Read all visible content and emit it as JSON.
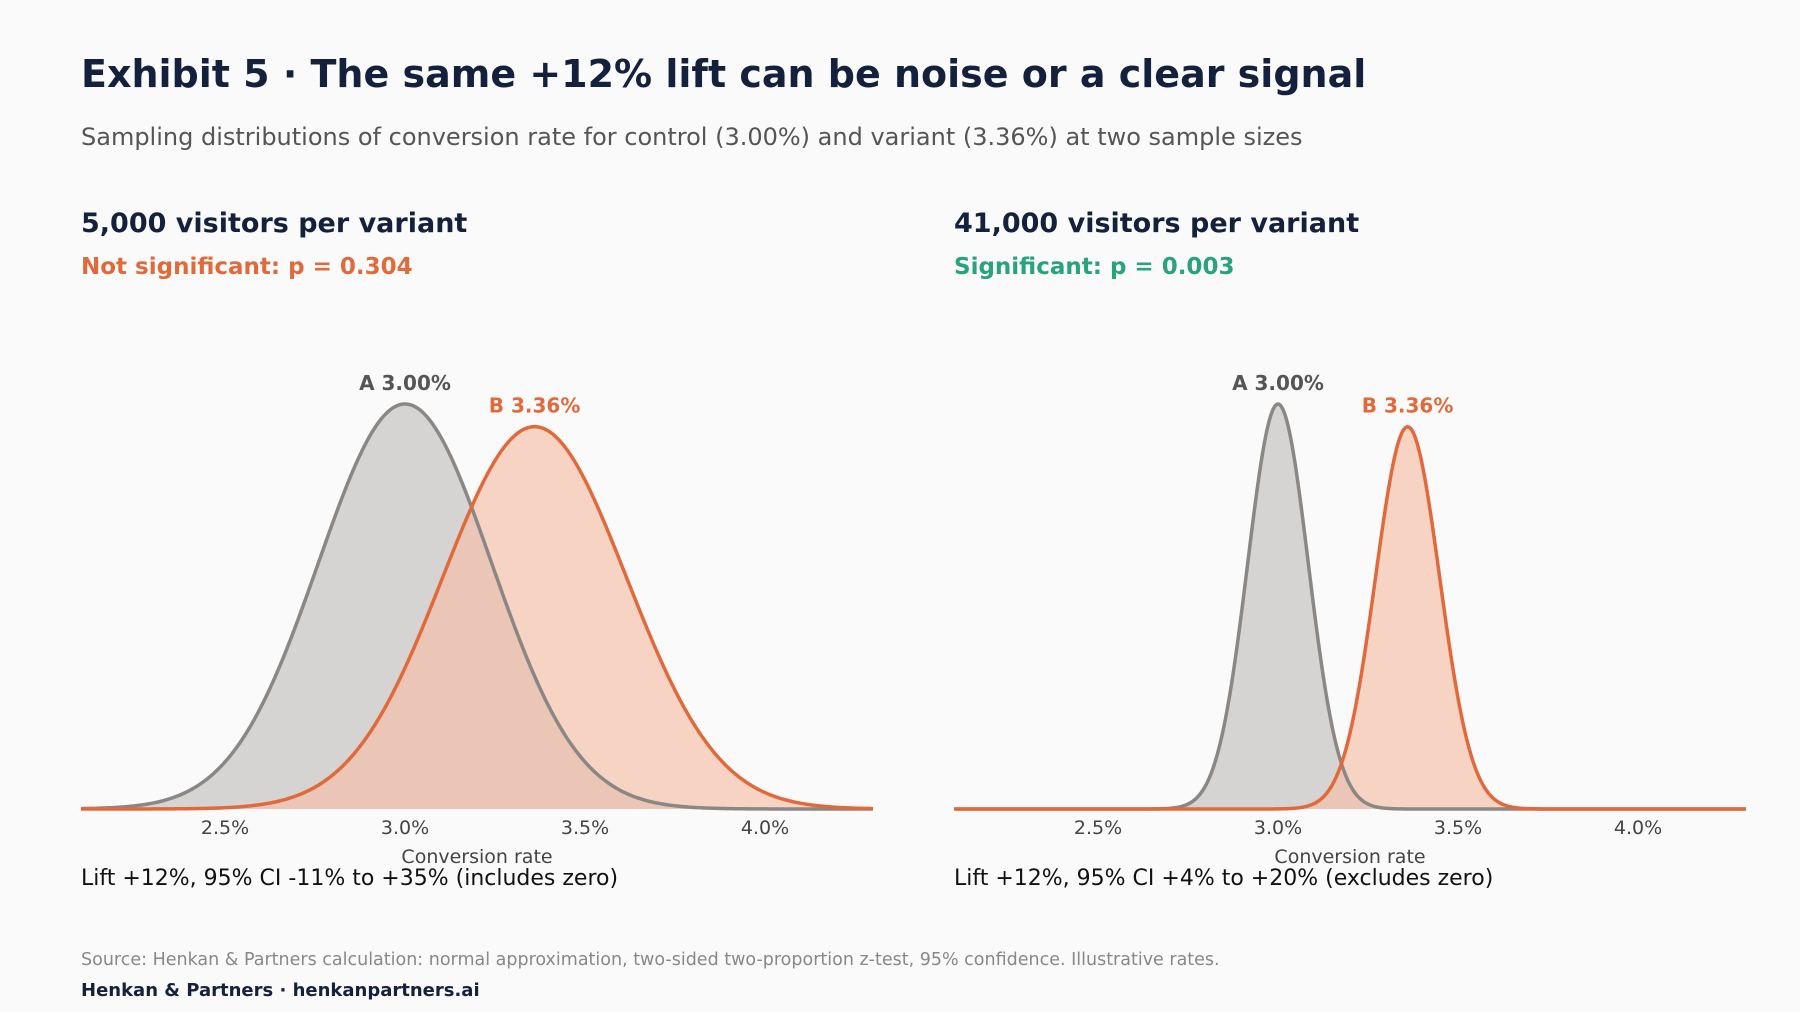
{
  "header": {
    "title": "Exhibit 5 · The same +12% lift can be noise or a clear signal",
    "subtitle": "Sampling distributions of conversion rate for control (3.00%) and variant (3.36%) at two sample sizes"
  },
  "panels": [
    {
      "title": "5,000 visitors per variant",
      "status": "Not significant:  p = 0.304",
      "status_color": "#e06a3b",
      "note": "Lift +12%, 95% CI -11% to +35%  (includes zero)"
    },
    {
      "title": "41,000 visitors per variant",
      "status": "Significant:  p = 0.003",
      "status_color": "#27a37e",
      "note": "Lift +12%, 95% CI +4% to +20%  (excludes zero)"
    }
  ],
  "footer": {
    "source": "Source: Henkan & Partners calculation: normal approximation, two-sided two-proportion z-test, 95% confidence. Illustrative rates.",
    "brand": "Henkan & Partners · henkanpartners.ai"
  },
  "colors": {
    "control_line": "#8a8784",
    "control_fill": "#d4d2d0",
    "variant_line": "#e06a3b",
    "variant_fill": "#f4bfa8",
    "peak_label_a": "#555555",
    "peak_label_b": "#e06a3b"
  },
  "chart_data": [
    {
      "type": "area",
      "title": "5,000 visitors per variant",
      "xlabel": "Conversion rate",
      "ylabel": "",
      "xlim": [
        2.1,
        4.3
      ],
      "xticks": [
        2.5,
        3.0,
        3.5,
        4.0
      ],
      "xtick_labels": [
        "2.5%",
        "3.0%",
        "3.5%",
        "4.0%"
      ],
      "visitors_per_variant": 5000,
      "series": [
        {
          "name": "A",
          "label": "A 3.00%",
          "mean_pct": 3.0,
          "sd_pct": 0.241,
          "relative_peak": 1.0
        },
        {
          "name": "B",
          "label": "B 3.36%",
          "mean_pct": 3.36,
          "sd_pct": 0.255,
          "relative_peak": 0.944
        }
      ],
      "p_value": 0.304,
      "significant": false
    },
    {
      "type": "area",
      "title": "41,000 visitors per variant",
      "xlabel": "Conversion rate",
      "ylabel": "",
      "xlim": [
        2.1,
        4.3
      ],
      "xticks": [
        2.5,
        3.0,
        3.5,
        4.0
      ],
      "xtick_labels": [
        "2.5%",
        "3.0%",
        "3.5%",
        "4.0%"
      ],
      "visitors_per_variant": 41000,
      "series": [
        {
          "name": "A",
          "label": "A 3.00%",
          "mean_pct": 3.0,
          "sd_pct": 0.0842,
          "relative_peak": 1.0
        },
        {
          "name": "B",
          "label": "B 3.36%",
          "mean_pct": 3.36,
          "sd_pct": 0.089,
          "relative_peak": 0.944
        }
      ],
      "p_value": 0.003,
      "significant": true
    }
  ]
}
